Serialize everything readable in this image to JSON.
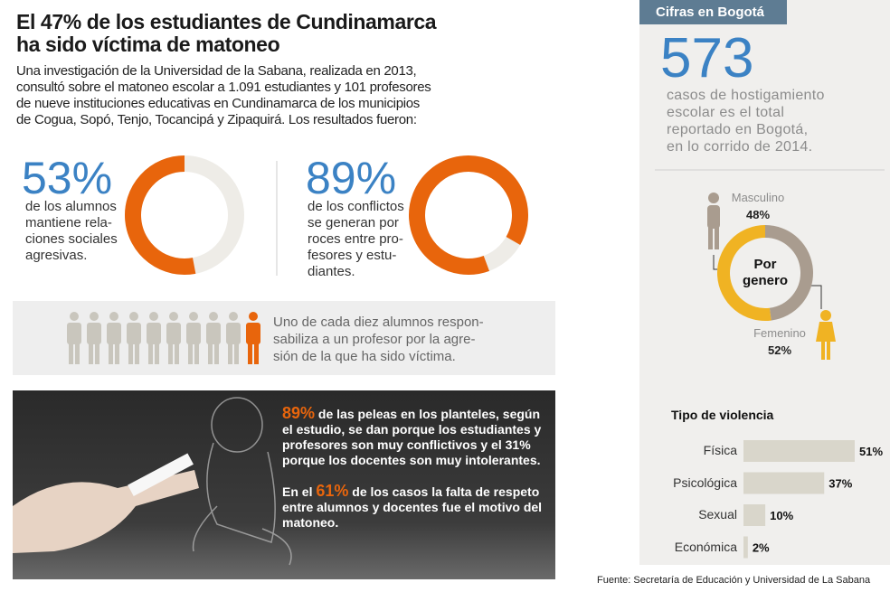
{
  "header": {
    "title": [
      "El 47% de los estudiantes de Cundinamarca",
      "ha sido víctima de matoneo"
    ],
    "intro": [
      "Una investigación de la Universidad de la Sabana, realizada en 2013,",
      "consultó sobre el matoneo escolar a 1.091 estudiantes y 101 profesores",
      "de nueve instituciones educativas en Cundinamarca de los municipios",
      "de Cogua, Sopó, Tenjo, Tocancipá y Zipaquirá. Los resultados fueron:"
    ]
  },
  "chart_data": [
    {
      "type": "donut",
      "values": [
        53
      ],
      "value_labels": [
        "53%"
      ],
      "color": "#e8650c",
      "caption": [
        "de los alumnos",
        "mantiene rela-",
        "ciones sociales",
        "agresivas."
      ]
    },
    {
      "type": "donut",
      "values": [
        89
      ],
      "value_labels": [
        "89%"
      ],
      "color": "#e8650c",
      "caption": [
        "de los conflictos",
        "se generan por",
        "roces entre pro-",
        "fesores y estu-",
        "diantes."
      ]
    },
    {
      "type": "donut",
      "center_label": "Por genero",
      "categories": [
        "Masculino",
        "Femenino"
      ],
      "values": [
        48,
        52
      ],
      "value_labels": [
        "48%",
        "52%"
      ],
      "colors": [
        "#a99c8f",
        "#f0b323"
      ]
    },
    {
      "type": "bar",
      "title": "Tipo de violencia",
      "categories": [
        "Física",
        "Psicológica",
        "Sexual",
        "Económica"
      ],
      "values": [
        51,
        37,
        10,
        2
      ],
      "value_labels": [
        "51%",
        "37%",
        "10%",
        "2%"
      ],
      "color": "#d9d6cb",
      "xlim": [
        0,
        51
      ]
    }
  ],
  "people": {
    "text": [
      "Uno de cada diez alumnos respon-",
      "sabiliza a un profesor por la agre-",
      "sión de la que ha sido víctima."
    ]
  },
  "dark_box": {
    "paragraphs": [
      {
        "highlight": "89%",
        "text": " de las peleas en los planteles, según el estudio, se dan porque los estudiantes y profesores son muy conflictivos y el 31% porque los docentes son muy intolerantes."
      },
      {
        "prefix": "En el ",
        "highlight": "61%",
        "text": " de los casos la falta de respeto entre alumnos y docentes fue el motivo del matoneo."
      }
    ]
  },
  "sidebar": {
    "header": "Cifras en Bogotá",
    "number": 573,
    "text": [
      "casos de hostigamiento",
      "escolar es el total",
      "reportado en Bogotá,",
      "en lo corrido de 2014."
    ]
  },
  "source": "Fuente: Secretaría de Educación y Universidad de La Sabana"
}
